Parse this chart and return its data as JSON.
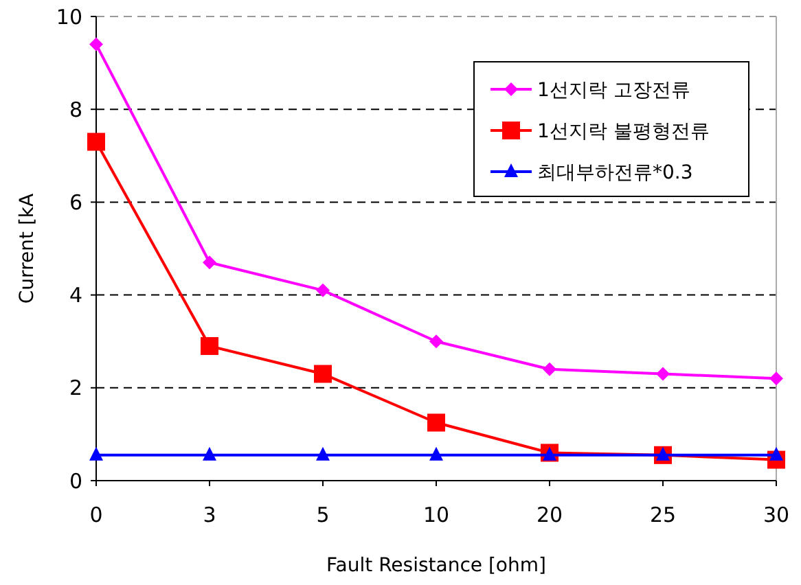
{
  "chart_data": {
    "type": "line",
    "xlabel": "Fault Resistance [ohm]",
    "ylabel": "Current [kA",
    "categories": [
      "0",
      "3",
      "5",
      "10",
      "20",
      "25",
      "30"
    ],
    "ylim": [
      0,
      10
    ],
    "yticks": [
      0,
      2,
      4,
      6,
      8,
      10
    ],
    "grid": "y",
    "legend": "top right",
    "line_style": "solid",
    "series": [
      {
        "name": "1선지락 고장전류",
        "color": "#ff00ff",
        "marker": "diamond",
        "values": [
          9.4,
          4.7,
          4.1,
          3.0,
          2.4,
          2.3,
          2.2
        ]
      },
      {
        "name": "1선지락 불평형전류",
        "color": "#ff0000",
        "marker": "square",
        "values": [
          7.3,
          2.9,
          2.3,
          1.25,
          0.6,
          0.55,
          0.45
        ]
      },
      {
        "name": "최대부하전류*0.3",
        "color": "#0000ff",
        "marker": "triangle",
        "values": [
          0.55,
          0.55,
          0.55,
          0.55,
          0.55,
          0.55,
          0.55
        ]
      }
    ]
  }
}
